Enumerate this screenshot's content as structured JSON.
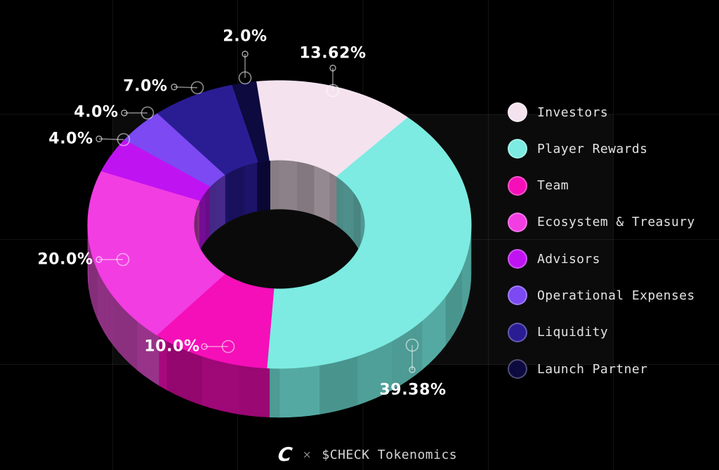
{
  "chart_data": {
    "type": "pie",
    "style": "3d-donut",
    "title": "$CHECK Tokenomics",
    "legend_position": "right",
    "background": "#000000",
    "start_angle_deg": -7,
    "slices": [
      {
        "label": "Investors",
        "value": 13.62,
        "display": "13.62%",
        "color": "#F4E3EF",
        "side_color": "#AC9FA7",
        "inner_color": "#8C8188"
      },
      {
        "label": "Player Rewards",
        "value": 39.38,
        "display": "39.38%",
        "color": "#7DEBE1",
        "side_color": "#4FA099",
        "inner_color": "#4E8F8B"
      },
      {
        "label": "Team",
        "value": 10.0,
        "display": "10.0%",
        "color": "#F50FB8",
        "side_color": "#9E0877",
        "inner_color": "#8F066C"
      },
      {
        "label": "Ecosystem & Treasury",
        "value": 20.0,
        "display": "20.0%",
        "color": "#F23DE2",
        "side_color": "#8E3182",
        "inner_color": "#7E2B74"
      },
      {
        "label": "Advisors",
        "value": 4.0,
        "display": "4.0%",
        "color": "#C013F2",
        "side_color": "#750D92",
        "inner_color": "#6D0D8C"
      },
      {
        "label": "Operational Expenses",
        "value": 4.0,
        "display": "4.0%",
        "color": "#7C49F2",
        "side_color": "#4A2B8F",
        "inner_color": "#46298A"
      },
      {
        "label": "Liquidity",
        "value": 7.0,
        "display": "7.0%",
        "color": "#2A1D94",
        "side_color": "#191058",
        "inner_color": "#1B1262"
      },
      {
        "label": "Launch Partner",
        "value": 2.0,
        "display": "2.0%",
        "color": "#0D0A3F",
        "side_color": "#080726",
        "inner_color": "#0A0735"
      }
    ]
  },
  "footer": {
    "logo_text": "C",
    "separator": "×",
    "title": "$CHECK Tokenomics"
  }
}
